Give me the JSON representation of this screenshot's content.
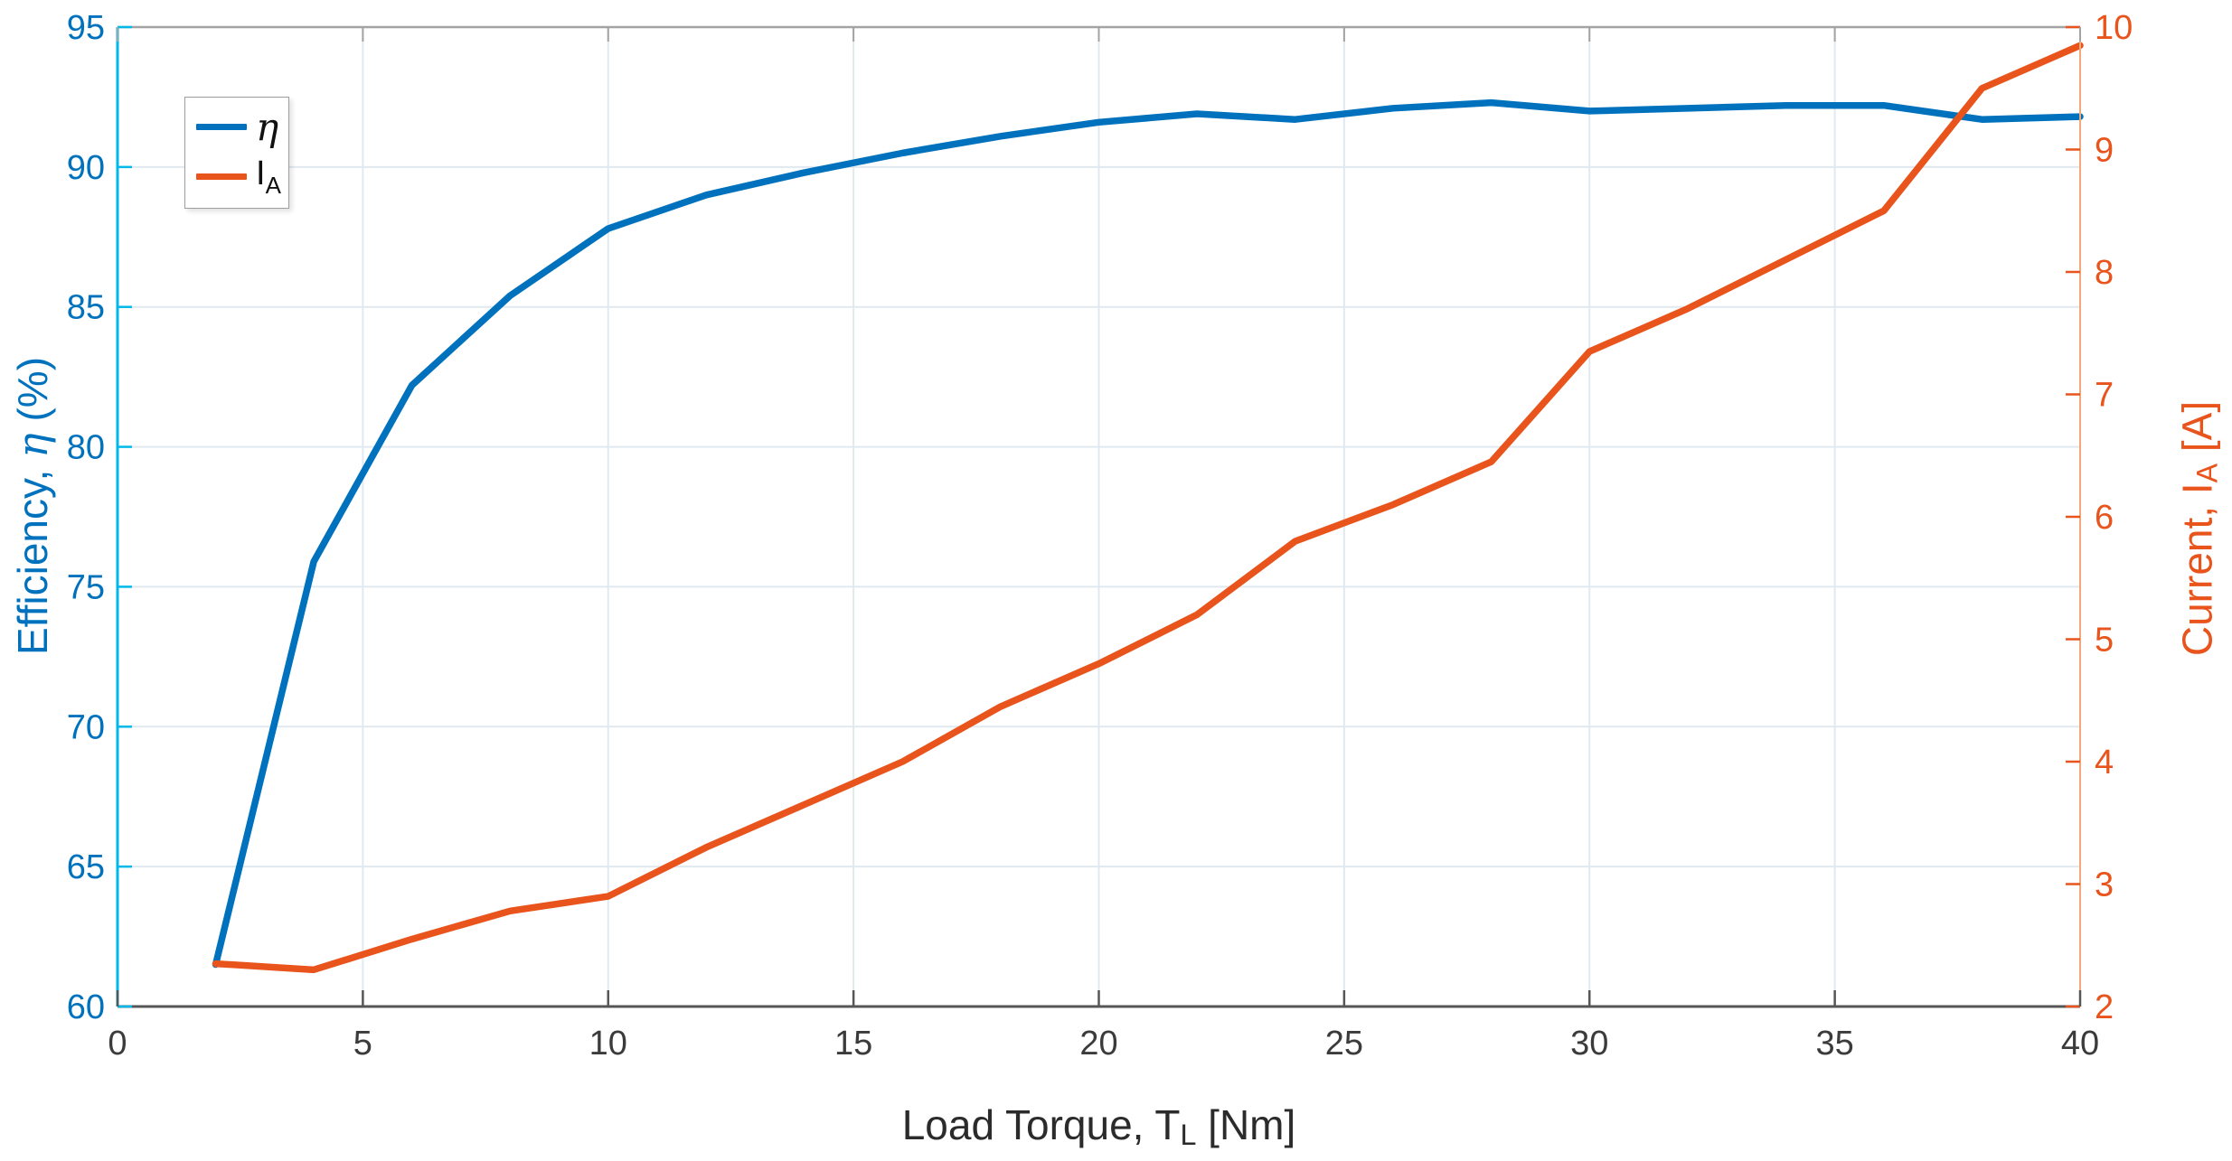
{
  "chart_data": {
    "type": "line",
    "x": [
      2,
      4,
      6,
      8,
      10,
      12,
      14,
      16,
      18,
      20,
      22,
      24,
      26,
      28,
      30,
      32,
      34,
      36,
      38,
      40
    ],
    "series": [
      {
        "name": "eta-efficiency",
        "axis": "left",
        "color": "#0072BD",
        "values": [
          61.5,
          75.9,
          82.2,
          85.4,
          87.8,
          89.0,
          89.8,
          90.5,
          91.1,
          91.6,
          91.9,
          91.7,
          92.1,
          92.3,
          92.0,
          92.1,
          92.2,
          92.2,
          91.7,
          91.8
        ]
      },
      {
        "name": "armature-current",
        "axis": "right",
        "color": "#E8541C",
        "values": [
          2.35,
          2.3,
          2.55,
          2.78,
          2.9,
          3.3,
          3.65,
          4.0,
          4.45,
          4.8,
          5.2,
          5.8,
          6.1,
          6.45,
          7.35,
          7.7,
          8.1,
          8.5,
          9.5,
          9.85
        ]
      }
    ],
    "xlim": [
      0,
      40
    ],
    "ylim_left": [
      60,
      95
    ],
    "ylim_right": [
      2,
      10
    ],
    "xticks": [
      0,
      5,
      10,
      15,
      20,
      25,
      30,
      35,
      40
    ],
    "yticks_left": [
      60,
      65,
      70,
      75,
      80,
      85,
      90,
      95
    ],
    "yticks_right": [
      2,
      3,
      4,
      5,
      6,
      7,
      8,
      9,
      10
    ],
    "grid": true,
    "legend_position": "upper-left",
    "xlabel": {
      "pre": "Load Torque, T",
      "sub": "L",
      "post": " [Nm]"
    },
    "ylabel_left": {
      "pre": "Efficiency, ",
      "italic": "η",
      "post": " (%)"
    },
    "ylabel_right": {
      "pre": "Current, I",
      "sub": "A",
      "post": " [A]"
    },
    "legend": {
      "items": [
        {
          "label": "η"
        },
        {
          "pre": "I",
          "sub": "A"
        }
      ]
    },
    "colors": {
      "blue_line": "#0072BD",
      "orange_line": "#E8541C",
      "left_spine": "#00B9E8",
      "right_spine": "#F2A878",
      "top_spine": "#A3A3A3",
      "bottom_spine": "#565656",
      "grid": "#E1E9F0",
      "left_tick_text": "#0072BD",
      "right_tick_text": "#E8541C",
      "x_tick_text": "#3B3B3B"
    }
  }
}
